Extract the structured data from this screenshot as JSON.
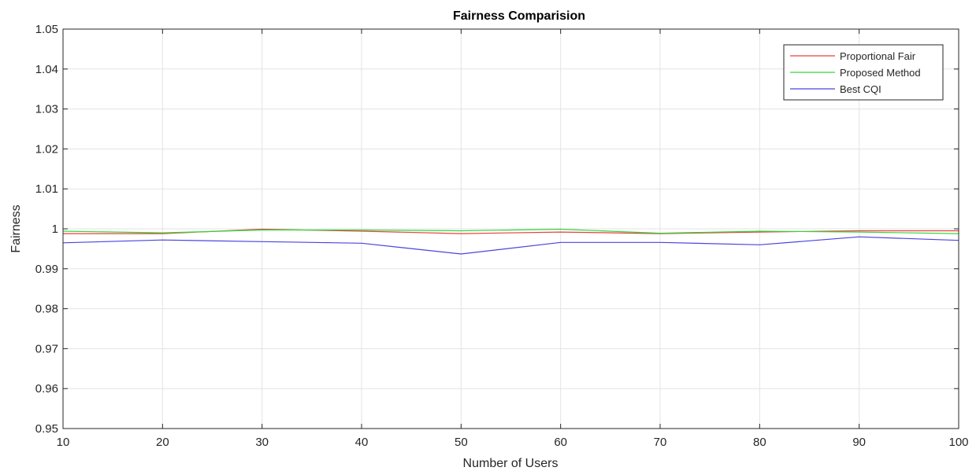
{
  "chart_data": {
    "type": "line",
    "title": "Fairness Comparision",
    "xlabel": "Number of Users",
    "ylabel": "Fairness",
    "x": [
      10,
      20,
      30,
      40,
      50,
      60,
      70,
      80,
      90,
      100
    ],
    "xlim": [
      10,
      100
    ],
    "ylim": [
      0.95,
      1.05
    ],
    "xticks": [
      10,
      20,
      30,
      40,
      50,
      60,
      70,
      80,
      90,
      100
    ],
    "xtick_labels": [
      "10",
      "20",
      "30",
      "40",
      "50",
      "60",
      "70",
      "80",
      "90",
      "100"
    ],
    "yticks": [
      0.95,
      0.96,
      0.97,
      0.98,
      0.99,
      1.0,
      1.01,
      1.02,
      1.03,
      1.04,
      1.05
    ],
    "ytick_labels": [
      "0.95",
      "0.96",
      "0.97",
      "0.98",
      "0.99",
      "1",
      "1.01",
      "1.02",
      "1.03",
      "1.04",
      "1.05"
    ],
    "grid": true,
    "legend_position": "top-right",
    "series": [
      {
        "name": "Proportional Fair",
        "color": "#e8403b",
        "values": [
          0.9988,
          0.9988,
          0.9999,
          0.9994,
          0.9988,
          0.9992,
          0.9988,
          0.9992,
          0.9995,
          0.9995
        ]
      },
      {
        "name": "Proposed Method",
        "color": "#33d63d",
        "values": [
          0.9994,
          0.999,
          0.9997,
          0.9997,
          0.9995,
          0.9999,
          0.9989,
          0.9994,
          0.9992,
          0.9988
        ]
      },
      {
        "name": "Best CQI",
        "color": "#4b43e0",
        "values": [
          0.9965,
          0.9972,
          0.9968,
          0.9964,
          0.9937,
          0.9966,
          0.9966,
          0.996,
          0.998,
          0.9971
        ]
      }
    ]
  }
}
